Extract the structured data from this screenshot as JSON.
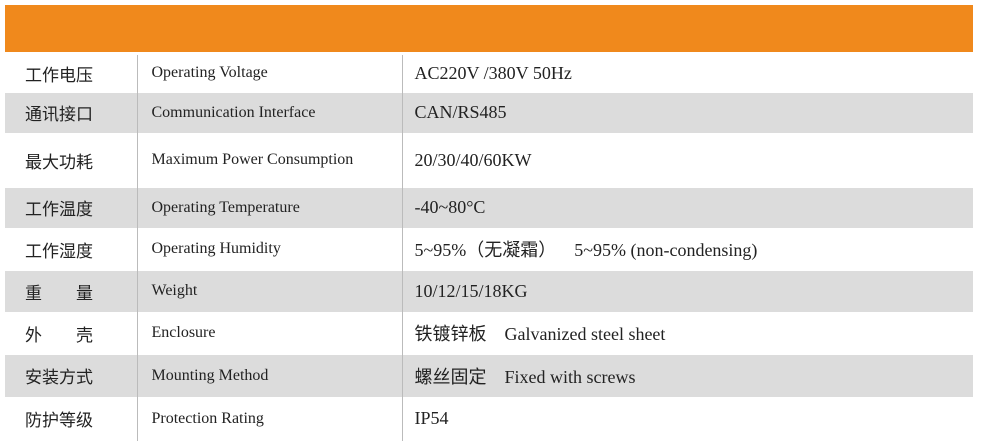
{
  "table": {
    "rows": [
      [
        "工作电压",
        "Operating Voltage",
        "AC220V /380V 50Hz"
      ],
      [
        "通讯接口",
        "Communication Interface",
        "CAN/RS485"
      ],
      [
        "最大功耗",
        "Maximum Power Consumption",
        "20/30/40/60KW"
      ],
      [
        "工作温度",
        "Operating Temperature",
        "-40~80°C"
      ],
      [
        "工作湿度",
        "Operating Humidity",
        "5~95%（无凝霜）    5~95% (non-condensing)"
      ],
      [
        "重　　量",
        "Weight",
        "10/12/15/18KG"
      ],
      [
        "外　　壳",
        "Enclosure",
        "铁镀锌板    Galvanized steel sheet"
      ],
      [
        "安装方式",
        "Mounting Method",
        "螺丝固定    Fixed with screws"
      ],
      [
        "防护等级",
        "Protection Rating",
        "IP54"
      ]
    ]
  }
}
